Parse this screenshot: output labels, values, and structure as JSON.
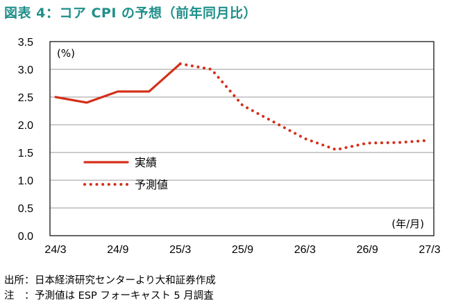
{
  "title": "図表 4：コア CPI の予想（前年同月比）",
  "chart_data": {
    "type": "line",
    "title": "図表 4：コア CPI の予想（前年同月比）",
    "y_unit": "(%)",
    "x_unit": "(年/月)",
    "ylim": [
      0.0,
      3.5
    ],
    "y_ticks": [
      "0.0",
      "0.5",
      "1.0",
      "1.5",
      "2.0",
      "2.5",
      "3.0",
      "3.5"
    ],
    "x_ticks": [
      "24/3",
      "24/9",
      "25/3",
      "25/9",
      "26/3",
      "26/9",
      "27/3"
    ],
    "grid": true,
    "legend_position": "center-left",
    "series": [
      {
        "name": "実績",
        "style": "solid",
        "color": "#d4301a",
        "x": [
          "24/3",
          "24/6",
          "24/9",
          "24/12",
          "25/3"
        ],
        "y": [
          2.5,
          2.4,
          2.6,
          2.6,
          3.1
        ]
      },
      {
        "name": "予測値",
        "style": "dotted",
        "color": "#d4301a",
        "x": [
          "25/3",
          "25/6",
          "25/9",
          "25/12",
          "26/3",
          "26/6",
          "26/9",
          "26/12",
          "27/3"
        ],
        "y": [
          3.1,
          3.0,
          2.35,
          2.05,
          1.75,
          1.55,
          1.67,
          1.68,
          1.72
        ]
      }
    ]
  },
  "notes": [
    {
      "prefix": "出所：",
      "text": "日本経済研究センターより大和証券作成"
    },
    {
      "prefix": "注　：",
      "text": "予測値は ESP フォーキャスト 5 月調査"
    }
  ]
}
